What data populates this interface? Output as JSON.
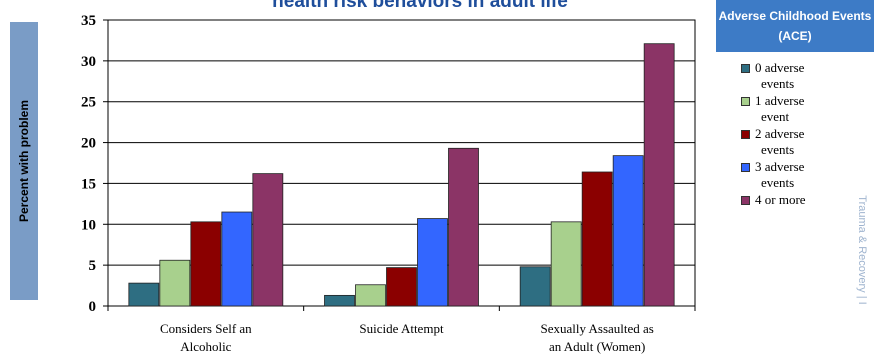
{
  "chart_data": {
    "type": "bar",
    "title": "health risk behaviors in adult life",
    "ylabel": "Percent  with problem",
    "xlabel": "",
    "ylim": [
      0,
      35
    ],
    "yticks": [
      "0",
      "5",
      "10",
      "15",
      "20",
      "25",
      "30",
      "35"
    ],
    "categories": [
      "Considers Self an Alcoholic",
      "Suicide Attempt",
      "Sexually Assaulted as an Adult (Women)"
    ],
    "category_lines": [
      [
        "Considers Self an",
        "Alcoholic"
      ],
      [
        "Suicide Attempt"
      ],
      [
        "Sexually Assaulted as",
        "an Adult (Women)"
      ]
    ],
    "series": [
      {
        "name": "0 adverse events",
        "color": "#2e6e82",
        "values": [
          2.8,
          1.3,
          4.8
        ]
      },
      {
        "name": "1 adverse event",
        "color": "#a8d08d",
        "values": [
          5.6,
          2.6,
          10.3
        ]
      },
      {
        "name": "2 adverse events",
        "color": "#8b0000",
        "values": [
          10.3,
          4.7,
          16.4
        ]
      },
      {
        "name": "3 adverse events",
        "color": "#3366ff",
        "values": [
          11.5,
          10.7,
          18.4
        ]
      },
      {
        "name": "4 or more",
        "color": "#8b3466",
        "values": [
          16.2,
          19.3,
          32.1
        ]
      }
    ],
    "grid": true,
    "legend_placement": "right"
  },
  "legend": {
    "title": "Adverse Childhood Events (ACE)",
    "items": [
      {
        "lines": [
          "0 adverse",
          "events"
        ]
      },
      {
        "lines": [
          "1 adverse",
          "event"
        ]
      },
      {
        "lines": [
          "2 adverse",
          "events"
        ]
      },
      {
        "lines": [
          "3 adverse",
          "events"
        ]
      },
      {
        "lines": [
          "4 or more"
        ]
      }
    ]
  },
  "watermark": "Trauma & Recovery | I"
}
